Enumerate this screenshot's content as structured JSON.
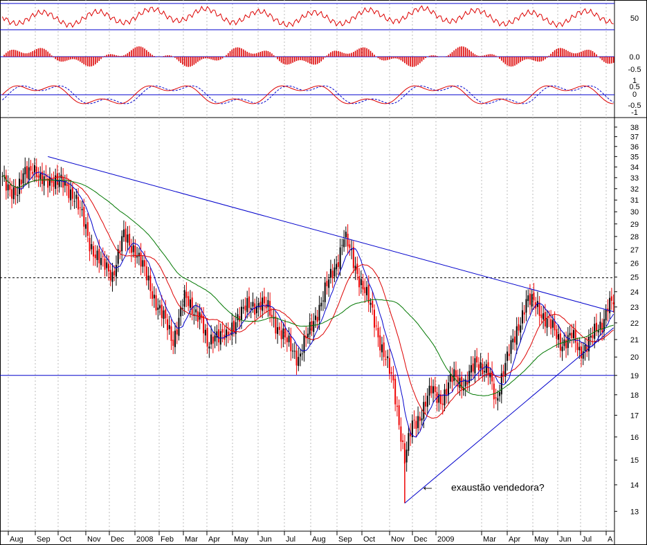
{
  "chart_data": {
    "type": "candlestick",
    "price_scale": "log",
    "ylim": [
      12.3,
      38.5
    ],
    "price_ticks": [
      13,
      14,
      15,
      16,
      17,
      18,
      19,
      20,
      21,
      22,
      23,
      24,
      25,
      26,
      27,
      28,
      29,
      30,
      31,
      32,
      33,
      34,
      35,
      36,
      37,
      38
    ],
    "x_labels": [
      "Aug",
      "Sep",
      "Oct",
      "Nov",
      "Dec",
      "2008",
      "Feb",
      "Mar",
      "Apr",
      "May",
      "Jun",
      "Jul",
      "Aug",
      "Sep",
      "Oct",
      "Nov",
      "Dec",
      "2009",
      "Mar",
      "Apr",
      "May",
      "Jun",
      "Jul",
      "A"
    ],
    "price_anchors": [
      {
        "i": 0,
        "v": 32.8
      },
      {
        "i": 8,
        "v": 31.5
      },
      {
        "i": 12,
        "v": 33.5
      },
      {
        "i": 16,
        "v": 34.2
      },
      {
        "i": 20,
        "v": 32.5
      },
      {
        "i": 26,
        "v": 33.0
      },
      {
        "i": 32,
        "v": 32.3
      },
      {
        "i": 38,
        "v": 31.5
      },
      {
        "i": 46,
        "v": 27.5
      },
      {
        "i": 52,
        "v": 26.0
      },
      {
        "i": 58,
        "v": 25.2
      },
      {
        "i": 64,
        "v": 28.0
      },
      {
        "i": 70,
        "v": 27.0
      },
      {
        "i": 76,
        "v": 25.0
      },
      {
        "i": 82,
        "v": 23.0
      },
      {
        "i": 90,
        "v": 21.0
      },
      {
        "i": 96,
        "v": 23.5
      },
      {
        "i": 100,
        "v": 23.0
      },
      {
        "i": 104,
        "v": 22.5
      },
      {
        "i": 108,
        "v": 20.5
      },
      {
        "i": 112,
        "v": 21.5
      },
      {
        "i": 118,
        "v": 21.0
      },
      {
        "i": 124,
        "v": 22.5
      },
      {
        "i": 130,
        "v": 23.0
      },
      {
        "i": 136,
        "v": 23.3
      },
      {
        "i": 140,
        "v": 22.8
      },
      {
        "i": 144,
        "v": 22.0
      },
      {
        "i": 150,
        "v": 20.8
      },
      {
        "i": 156,
        "v": 20.0
      },
      {
        "i": 162,
        "v": 21.5
      },
      {
        "i": 170,
        "v": 24.0
      },
      {
        "i": 176,
        "v": 26.0
      },
      {
        "i": 180,
        "v": 28.0
      },
      {
        "i": 184,
        "v": 26.5
      },
      {
        "i": 188,
        "v": 25.0
      },
      {
        "i": 194,
        "v": 23.0
      },
      {
        "i": 200,
        "v": 20.5
      },
      {
        "i": 206,
        "v": 18.5
      },
      {
        "i": 212,
        "v": 15.0
      },
      {
        "i": 216,
        "v": 16.5
      },
      {
        "i": 220,
        "v": 17.0
      },
      {
        "i": 226,
        "v": 18.2
      },
      {
        "i": 232,
        "v": 17.8
      },
      {
        "i": 238,
        "v": 19.0
      },
      {
        "i": 244,
        "v": 18.5
      },
      {
        "i": 250,
        "v": 19.8
      },
      {
        "i": 256,
        "v": 19.2
      },
      {
        "i": 260,
        "v": 17.5
      },
      {
        "i": 264,
        "v": 19.5
      },
      {
        "i": 270,
        "v": 21.0
      },
      {
        "i": 276,
        "v": 23.5
      },
      {
        "i": 282,
        "v": 23.0
      },
      {
        "i": 288,
        "v": 22.0
      },
      {
        "i": 294,
        "v": 20.8
      },
      {
        "i": 300,
        "v": 21.2
      },
      {
        "i": 304,
        "v": 20.3
      },
      {
        "i": 310,
        "v": 21.0
      },
      {
        "i": 316,
        "v": 22.0
      },
      {
        "i": 319,
        "v": 23.2
      }
    ],
    "ma_series": [
      {
        "color": "#0000cc",
        "period": 9
      },
      {
        "color": "#dd0000",
        "period": 21
      },
      {
        "color": "#007700",
        "period": 50
      }
    ],
    "trendlines": [
      {
        "from": {
          "i": 24,
          "v": 35.0
        },
        "to": {
          "i": 322,
          "v": 22.7
        },
        "color": "#0000cc"
      },
      {
        "from": {
          "i": 212,
          "v": 13.3
        },
        "to": {
          "i": 322,
          "v": 21.7
        },
        "color": "#0000cc"
      }
    ],
    "horizontal_lines": [
      {
        "v": 19.0,
        "style": "solid",
        "color": "#0000cc"
      },
      {
        "v": 24.95,
        "style": "dashed",
        "color": "#000000"
      }
    ],
    "annotation": {
      "text": "exaustão vendedora?",
      "arrow": "←",
      "target_v": 13.9
    },
    "indicator_panels": [
      {
        "name": "oscillator",
        "ticks": [
          "50"
        ],
        "lines": [
          80,
          20
        ],
        "color": "#dd0000"
      },
      {
        "name": "histogram",
        "ticks": [
          "0.0",
          "-0.5"
        ],
        "color": "#dd0000"
      },
      {
        "name": "macd",
        "ticks": [
          "1",
          "0.5",
          "0",
          "-0.5",
          "-1"
        ],
        "color": "#dd0000",
        "signal_color": "#0000cc"
      }
    ]
  }
}
